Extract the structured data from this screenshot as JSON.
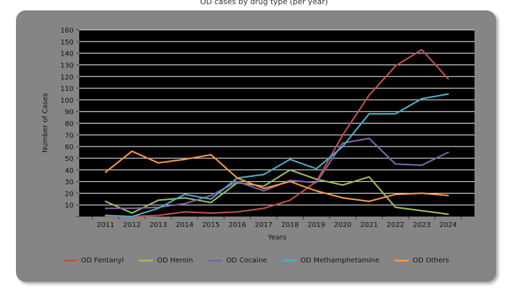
{
  "caption": "OD cases by drug type (per year)",
  "chart_data": {
    "type": "line",
    "title": "",
    "xlabel": "Years",
    "ylabel": "Number of Cases",
    "ylim": [
      0,
      160
    ],
    "ytick_step": 10,
    "grid": true,
    "legend_position": "bottom",
    "categories": [
      "2011",
      "2012",
      "2013",
      "2014",
      "2015",
      "2016",
      "2017",
      "2018",
      "2019",
      "2020",
      "2021",
      "2022",
      "2023",
      "2024"
    ],
    "series": [
      {
        "name": "OD Fentanyl",
        "color": "#c0504d",
        "values": [
          0,
          0,
          1,
          4,
          3,
          4,
          7,
          14,
          30,
          70,
          104,
          129,
          143,
          118
        ]
      },
      {
        "name": "OD Heroin",
        "color": "#9bbb59",
        "values": [
          13,
          3,
          14,
          16,
          12,
          29,
          26,
          40,
          32,
          27,
          34,
          8,
          5,
          2
        ]
      },
      {
        "name": "OD Cocaine",
        "color": "#8064a2",
        "values": [
          7,
          7,
          8,
          11,
          18,
          30,
          22,
          31,
          29,
          63,
          67,
          45,
          44,
          55
        ]
      },
      {
        "name": "OD Methamphetamine",
        "color": "#4bacc6",
        "values": [
          1,
          0,
          7,
          19,
          15,
          33,
          36,
          49,
          41,
          60,
          88,
          88,
          101,
          105
        ]
      },
      {
        "name": "OD Others",
        "color": "#f79646",
        "values": [
          38,
          56,
          46,
          49,
          53,
          33,
          24,
          30,
          22,
          16,
          13,
          19,
          20,
          18
        ]
      }
    ]
  }
}
